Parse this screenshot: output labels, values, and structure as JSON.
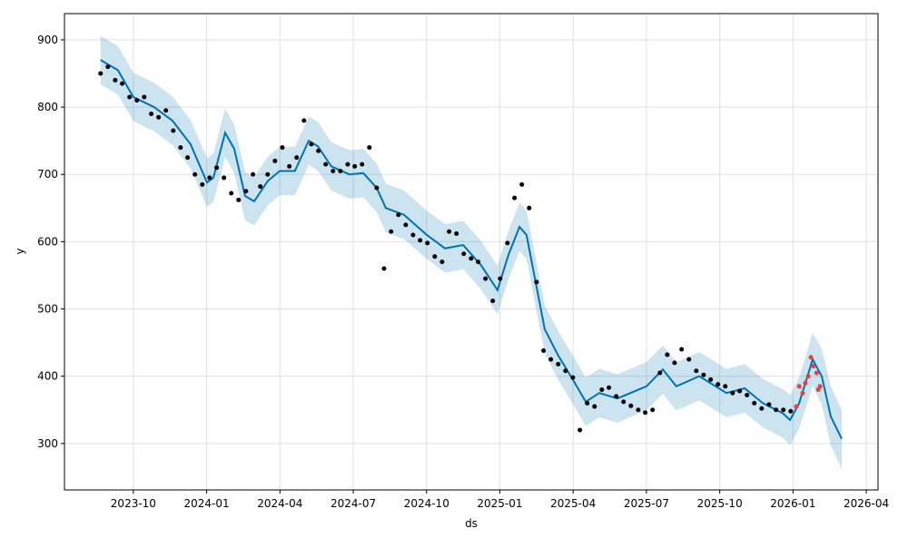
{
  "chart_data": {
    "type": "forecast",
    "x_label": "ds",
    "y_label": "y",
    "xlim": [
      2023.515,
      2026.29
    ],
    "ylim": [
      231,
      939
    ],
    "xticks": [
      {
        "value": 2023.75,
        "label": "2023-10"
      },
      {
        "value": 2024.0,
        "label": "2024-01"
      },
      {
        "value": 2024.25,
        "label": "2024-04"
      },
      {
        "value": 2024.5,
        "label": "2024-07"
      },
      {
        "value": 2024.75,
        "label": "2024-10"
      },
      {
        "value": 2025.0,
        "label": "2025-01"
      },
      {
        "value": 2025.25,
        "label": "2025-04"
      },
      {
        "value": 2025.5,
        "label": "2025-07"
      },
      {
        "value": 2025.75,
        "label": "2025-10"
      },
      {
        "value": 2026.0,
        "label": "2026-01"
      },
      {
        "value": 2026.25,
        "label": "2026-04"
      }
    ],
    "yticks": [
      300,
      400,
      500,
      600,
      700,
      800,
      900
    ],
    "grid": true,
    "band": {
      "color": "#0072b2",
      "x": [
        2023.638,
        2023.697,
        2023.75,
        2023.821,
        2023.883,
        2023.945,
        2024.001,
        2024.023,
        2024.063,
        2024.094,
        2024.131,
        2024.162,
        2024.208,
        2024.249,
        2024.301,
        2024.348,
        2024.379,
        2024.425,
        2024.487,
        2024.534,
        2024.58,
        2024.611,
        2024.673,
        2024.751,
        2024.813,
        2024.875,
        2024.936,
        2024.992,
        2025.029,
        2025.067,
        2025.091,
        2025.122,
        2025.153,
        2025.2,
        2025.249,
        2025.293,
        2025.339,
        2025.401,
        2025.5,
        2025.556,
        2025.602,
        2025.68,
        2025.773,
        2025.835,
        2025.897,
        2025.965,
        2025.99,
        2026.021,
        2026.067,
        2026.098,
        2026.129,
        2026.166
      ],
      "upper": [
        906,
        891,
        851,
        836,
        816,
        781,
        724,
        731,
        798,
        774,
        704,
        696,
        726,
        741,
        741,
        786,
        778,
        748,
        736,
        738,
        716,
        686,
        676,
        646,
        626,
        631,
        601,
        564,
        616,
        658,
        646,
        576,
        506,
        466,
        431,
        398,
        411,
        403,
        421,
        446,
        421,
        436,
        411,
        418,
        396,
        381,
        372,
        398,
        465,
        440,
        385,
        350
      ],
      "lower": [
        834,
        819,
        779,
        764,
        744,
        709,
        652,
        659,
        726,
        702,
        632,
        624,
        654,
        669,
        669,
        714,
        706,
        676,
        664,
        666,
        644,
        614,
        604,
        574,
        554,
        559,
        529,
        492,
        544,
        586,
        574,
        504,
        434,
        394,
        359,
        326,
        339,
        331,
        349,
        374,
        349,
        364,
        339,
        346,
        324,
        309,
        298,
        322,
        385,
        358,
        297,
        262
      ]
    },
    "series": [
      {
        "kind": "line",
        "color": "#0072b2",
        "x": [
          2023.638,
          2023.697,
          2023.75,
          2023.821,
          2023.883,
          2023.945,
          2024.001,
          2024.023,
          2024.063,
          2024.094,
          2024.131,
          2024.162,
          2024.208,
          2024.249,
          2024.301,
          2024.348,
          2024.379,
          2024.425,
          2024.487,
          2024.534,
          2024.58,
          2024.611,
          2024.673,
          2024.751,
          2024.813,
          2024.875,
          2024.936,
          2024.992,
          2025.029,
          2025.067,
          2025.091,
          2025.122,
          2025.153,
          2025.2,
          2025.249,
          2025.293,
          2025.339,
          2025.401,
          2025.5,
          2025.556,
          2025.602,
          2025.68,
          2025.773,
          2025.835,
          2025.897,
          2025.965,
          2025.99,
          2026.021,
          2026.067,
          2026.098,
          2026.129,
          2026.166
        ],
        "values": [
          870,
          855,
          815,
          800,
          780,
          745,
          688,
          695,
          762,
          738,
          668,
          660,
          690,
          705,
          705,
          750,
          742,
          712,
          700,
          702,
          680,
          650,
          640,
          610,
          590,
          595,
          565,
          528,
          580,
          622,
          610,
          540,
          470,
          430,
          395,
          362,
          375,
          367,
          385,
          410,
          385,
          400,
          375,
          382,
          360,
          345,
          335,
          360,
          425,
          400,
          340,
          307
        ]
      },
      {
        "kind": "points",
        "color": "#000000",
        "x": [
          2023.638,
          2023.663,
          2023.688,
          2023.712,
          2023.737,
          2023.762,
          2023.787,
          2023.811,
          2023.836,
          2023.861,
          2023.886,
          2023.911,
          2023.935,
          2023.96,
          2023.985,
          2024.01,
          2024.034,
          2024.059,
          2024.084,
          2024.109,
          2024.134,
          2024.158,
          2024.183,
          2024.208,
          2024.233,
          2024.258,
          2024.282,
          2024.307,
          2024.332,
          2024.357,
          2024.381,
          2024.406,
          2024.431,
          2024.456,
          2024.481,
          2024.505,
          2024.53,
          2024.555,
          2024.58,
          2024.605,
          2024.629,
          2024.654,
          2024.679,
          2024.704,
          2024.728,
          2024.753,
          2024.778,
          2024.803,
          2024.827,
          2024.852,
          2024.877,
          2024.902,
          2024.926,
          2024.951,
          2024.976,
          2025.001,
          2025.026,
          2025.05,
          2025.075,
          2025.1,
          2025.125,
          2025.149,
          2025.174,
          2025.199,
          2025.224,
          2025.249,
          2025.273,
          2025.298,
          2025.323,
          2025.348,
          2025.372,
          2025.397,
          2025.422,
          2025.447,
          2025.472,
          2025.496,
          2025.521,
          2025.546,
          2025.571,
          2025.596,
          2025.62,
          2025.645,
          2025.67,
          2025.695,
          2025.719,
          2025.744,
          2025.769,
          2025.794,
          2025.818,
          2025.843,
          2025.868,
          2025.893,
          2025.918,
          2025.942,
          2025.967,
          2025.992
        ],
        "values": [
          850,
          860,
          840,
          835,
          815,
          810,
          815,
          790,
          785,
          795,
          765,
          740,
          725,
          700,
          685,
          695,
          710,
          695,
          672,
          662,
          675,
          700,
          682,
          700,
          720,
          740,
          712,
          725,
          780,
          745,
          735,
          715,
          705,
          705,
          715,
          712,
          715,
          740,
          680,
          560,
          615,
          640,
          625,
          610,
          602,
          598,
          578,
          570,
          615,
          612,
          582,
          575,
          570,
          545,
          512,
          545,
          598,
          665,
          685,
          650,
          540,
          438,
          425,
          418,
          408,
          398,
          320,
          360,
          355,
          380,
          383,
          370,
          362,
          356,
          350,
          346,
          350,
          405,
          432,
          420,
          440,
          425,
          408,
          402,
          395,
          388,
          385,
          375,
          378,
          372,
          360,
          352,
          358,
          350,
          350,
          348
        ]
      },
      {
        "kind": "points",
        "color": "#f03c3c",
        "x": [
          2026.011,
          2026.021,
          2026.033,
          2026.042,
          2026.052,
          2026.061,
          2026.07,
          2026.08,
          2026.086,
          2026.092
        ],
        "values": [
          355,
          385,
          375,
          390,
          400,
          428,
          415,
          405,
          380,
          385
        ]
      }
    ]
  }
}
